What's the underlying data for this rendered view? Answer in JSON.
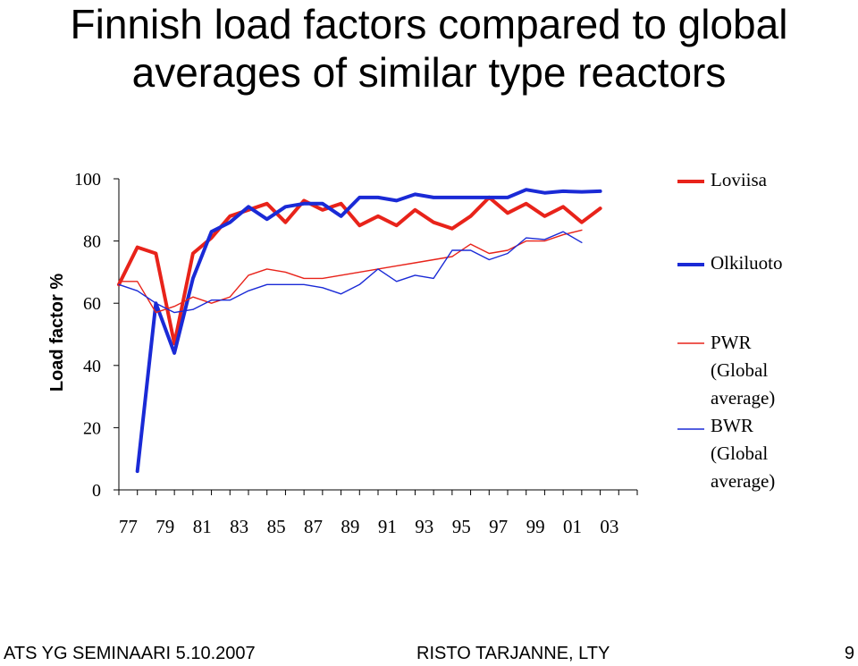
{
  "slide": {
    "title_line1": "Finnish load factors compared to global",
    "title_line2": "averages of similar type reactors"
  },
  "footer": {
    "left": "ATS YG SEMINAARI 5.10.2007",
    "center": "RISTO TARJANNE, LTY",
    "page_number": "9"
  },
  "chart_data": {
    "type": "line",
    "title": "",
    "xlabel": "",
    "ylabel": "Load factor %",
    "ylim": [
      0,
      100
    ],
    "yticks": [
      "0",
      "20",
      "40",
      "60",
      "80",
      "100"
    ],
    "x": [
      1976,
      1977,
      1978,
      1979,
      1980,
      1981,
      1982,
      1983,
      1984,
      1985,
      1986,
      1987,
      1988,
      1989,
      1990,
      1991,
      1992,
      1993,
      1994,
      1995,
      1996,
      1997,
      1998,
      1999,
      2000,
      2001,
      2002,
      2003,
      2004
    ],
    "xtick_labels": [
      "77",
      "79",
      "81",
      "83",
      "85",
      "87",
      "89",
      "91",
      "93",
      "95",
      "97",
      "99",
      "01",
      "03"
    ],
    "grid": false,
    "legend_position": "right",
    "series": [
      {
        "name": "Loviisa",
        "color": "#e8231a",
        "line_width": "thick",
        "values": [
          66,
          78,
          76,
          47,
          76,
          81,
          88,
          90,
          92,
          86,
          93,
          90,
          92,
          85,
          88,
          85,
          90,
          86,
          84,
          88,
          94,
          89,
          92,
          88,
          91,
          86,
          90.5,
          null,
          null
        ]
      },
      {
        "name": "Olkiluoto",
        "color": "#1a2ad6",
        "line_width": "thick",
        "values": [
          null,
          6,
          60,
          44,
          68,
          83,
          86,
          91,
          87,
          91,
          92,
          92,
          88,
          94,
          94,
          93,
          95,
          94,
          94,
          94,
          94,
          94,
          96.5,
          95.5,
          96,
          95.8,
          96,
          null,
          null
        ]
      },
      {
        "name": "PWR (Global average)",
        "color": "#e8231a",
        "line_width": "thin",
        "values": [
          67,
          67,
          57,
          59,
          62,
          60,
          62,
          69,
          71,
          70,
          68,
          68,
          69,
          70,
          71,
          72,
          73,
          74,
          75,
          79,
          76,
          77,
          80,
          80,
          82,
          83.5,
          null,
          null,
          null
        ]
      },
      {
        "name": "BWR (Global average)",
        "color": "#1a2ad6",
        "line_width": "thin",
        "values": [
          66,
          64,
          60,
          57,
          58,
          61,
          61,
          64,
          66,
          66,
          66,
          65,
          63,
          66,
          71,
          67,
          69,
          68,
          77,
          77,
          74,
          76,
          81,
          80.5,
          83,
          79.5,
          null,
          null,
          null
        ]
      }
    ]
  }
}
